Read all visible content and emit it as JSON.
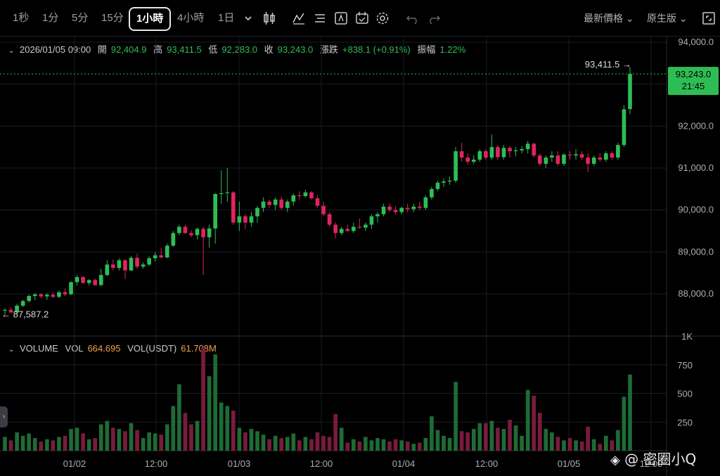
{
  "toolbar": {
    "timeframes": [
      "1秒",
      "1分",
      "5分",
      "15分",
      "1小時",
      "4小時",
      "1日"
    ],
    "active_timeframe": "1小時",
    "price_type": "最新價格",
    "view_mode": "原生版",
    "icons": [
      "chevron-down-icon",
      "candle-type-icon",
      "indicators-icon",
      "drawing-list-icon",
      "template-icon",
      "alert-icon",
      "settings-icon",
      "undo-icon",
      "redo-icon",
      "fullscreen-icon"
    ]
  },
  "ohlc": {
    "datetime": "2026/01/05 09:00",
    "open_label": "開",
    "open": "92,404.9",
    "high_label": "高",
    "high": "93,411.5",
    "low_label": "低",
    "low": "92,283.0",
    "close_label": "收",
    "close": "93,243.0",
    "change_label": "漲跌",
    "change": "+838.1 (+0.91%)",
    "amplitude_label": "振幅",
    "amplitude": "1.22%"
  },
  "price_axis": {
    "ticks": [
      "94,000.0",
      "93,000.0",
      "92,000.0",
      "91,000.0",
      "90,000.0",
      "89,000.0",
      "88,000.0"
    ],
    "current_price": "93,243.0",
    "countdown": "21:45",
    "high_marker": "93,411.5 →",
    "low_marker": "← 87,587.2"
  },
  "volume": {
    "title": "VOLUME",
    "vol_label": "VOL",
    "vol": "664.695",
    "vol_usdt_label": "VOL(USDT)",
    "vol_usdt": "61.708M",
    "ticks": [
      "1K",
      "750",
      "500",
      "250"
    ]
  },
  "time_axis": {
    "labels": [
      "01/02",
      "12:00",
      "01/03",
      "12:00",
      "01/04",
      "12:00",
      "01/05",
      "12:00"
    ]
  },
  "watermark": {
    "text": "@ 密圈小Q"
  },
  "colors": {
    "up": "#2ebd55",
    "down": "#e0245e",
    "background": "#000000",
    "grid": "#1a1d22"
  },
  "chart_data": {
    "type": "candlestick",
    "interval": "1小時",
    "ylim": [
      87200,
      94100
    ],
    "volume_ylim": [
      0,
      1000
    ],
    "candles": [
      {
        "o": 87600,
        "h": 87650,
        "l": 87500,
        "c": 87620,
        "v": 120
      },
      {
        "o": 87620,
        "h": 87680,
        "l": 87540,
        "c": 87560,
        "v": 90
      },
      {
        "o": 87560,
        "h": 87760,
        "l": 87520,
        "c": 87720,
        "v": 160
      },
      {
        "o": 87720,
        "h": 87860,
        "l": 87680,
        "c": 87830,
        "v": 130
      },
      {
        "o": 87830,
        "h": 87990,
        "l": 87790,
        "c": 87950,
        "v": 150
      },
      {
        "o": 87950,
        "h": 88020,
        "l": 87850,
        "c": 87990,
        "v": 110
      },
      {
        "o": 87990,
        "h": 88010,
        "l": 87900,
        "c": 87940,
        "v": 80
      },
      {
        "o": 87940,
        "h": 88020,
        "l": 87860,
        "c": 87980,
        "v": 100
      },
      {
        "o": 87980,
        "h": 88030,
        "l": 87900,
        "c": 87930,
        "v": 90
      },
      {
        "o": 87930,
        "h": 88080,
        "l": 87900,
        "c": 88040,
        "v": 120
      },
      {
        "o": 88040,
        "h": 88130,
        "l": 87950,
        "c": 87990,
        "v": 130
      },
      {
        "o": 87990,
        "h": 88300,
        "l": 87970,
        "c": 88280,
        "v": 190
      },
      {
        "o": 88280,
        "h": 88450,
        "l": 88200,
        "c": 88400,
        "v": 200
      },
      {
        "o": 88400,
        "h": 88430,
        "l": 88240,
        "c": 88260,
        "v": 150
      },
      {
        "o": 88260,
        "h": 88350,
        "l": 88200,
        "c": 88330,
        "v": 100
      },
      {
        "o": 88330,
        "h": 88370,
        "l": 88200,
        "c": 88210,
        "v": 110
      },
      {
        "o": 88210,
        "h": 88600,
        "l": 88190,
        "c": 88450,
        "v": 230
      },
      {
        "o": 88450,
        "h": 88800,
        "l": 88420,
        "c": 88700,
        "v": 260
      },
      {
        "o": 88700,
        "h": 88820,
        "l": 88560,
        "c": 88620,
        "v": 200
      },
      {
        "o": 88620,
        "h": 88850,
        "l": 88560,
        "c": 88800,
        "v": 190
      },
      {
        "o": 88800,
        "h": 88830,
        "l": 88350,
        "c": 88560,
        "v": 170
      },
      {
        "o": 88560,
        "h": 88900,
        "l": 88540,
        "c": 88860,
        "v": 240
      },
      {
        "o": 88860,
        "h": 88960,
        "l": 88600,
        "c": 88650,
        "v": 180
      },
      {
        "o": 88650,
        "h": 88750,
        "l": 88600,
        "c": 88700,
        "v": 110
      },
      {
        "o": 88700,
        "h": 88900,
        "l": 88660,
        "c": 88850,
        "v": 160
      },
      {
        "o": 88850,
        "h": 88990,
        "l": 88780,
        "c": 88920,
        "v": 150
      },
      {
        "o": 88920,
        "h": 89100,
        "l": 88850,
        "c": 88870,
        "v": 140
      },
      {
        "o": 88870,
        "h": 89200,
        "l": 88850,
        "c": 89150,
        "v": 230
      },
      {
        "o": 89150,
        "h": 89500,
        "l": 89120,
        "c": 89450,
        "v": 390
      },
      {
        "o": 89450,
        "h": 89650,
        "l": 89400,
        "c": 89600,
        "v": 580
      },
      {
        "o": 89600,
        "h": 89650,
        "l": 89430,
        "c": 89450,
        "v": 330
      },
      {
        "o": 89450,
        "h": 89520,
        "l": 89350,
        "c": 89400,
        "v": 230
      },
      {
        "o": 89400,
        "h": 89580,
        "l": 89300,
        "c": 89550,
        "v": 260
      },
      {
        "o": 89550,
        "h": 89600,
        "l": 88450,
        "c": 89350,
        "v": 900
      },
      {
        "o": 89350,
        "h": 89650,
        "l": 89100,
        "c": 89560,
        "v": 650
      },
      {
        "o": 89560,
        "h": 90400,
        "l": 89200,
        "c": 90380,
        "v": 840
      },
      {
        "o": 90380,
        "h": 90950,
        "l": 90150,
        "c": 90400,
        "v": 420
      },
      {
        "o": 90400,
        "h": 91000,
        "l": 90200,
        "c": 90420,
        "v": 390
      },
      {
        "o": 90420,
        "h": 90450,
        "l": 89650,
        "c": 89700,
        "v": 350
      },
      {
        "o": 89700,
        "h": 90200,
        "l": 89500,
        "c": 89850,
        "v": 200
      },
      {
        "o": 89850,
        "h": 89900,
        "l": 89550,
        "c": 89700,
        "v": 160
      },
      {
        "o": 89700,
        "h": 89950,
        "l": 89600,
        "c": 89850,
        "v": 190
      },
      {
        "o": 89850,
        "h": 90100,
        "l": 89700,
        "c": 90050,
        "v": 170
      },
      {
        "o": 90050,
        "h": 90300,
        "l": 89950,
        "c": 90200,
        "v": 140
      },
      {
        "o": 90200,
        "h": 90250,
        "l": 90050,
        "c": 90120,
        "v": 100
      },
      {
        "o": 90120,
        "h": 90300,
        "l": 90000,
        "c": 90250,
        "v": 130
      },
      {
        "o": 90250,
        "h": 90320,
        "l": 90000,
        "c": 90050,
        "v": 110
      },
      {
        "o": 90050,
        "h": 90250,
        "l": 89950,
        "c": 90200,
        "v": 120
      },
      {
        "o": 90200,
        "h": 90400,
        "l": 90100,
        "c": 90350,
        "v": 150
      },
      {
        "o": 90350,
        "h": 90450,
        "l": 90250,
        "c": 90330,
        "v": 90
      },
      {
        "o": 90330,
        "h": 90480,
        "l": 90300,
        "c": 90420,
        "v": 120
      },
      {
        "o": 90420,
        "h": 90450,
        "l": 90250,
        "c": 90280,
        "v": 100
      },
      {
        "o": 90280,
        "h": 90350,
        "l": 90050,
        "c": 90100,
        "v": 160
      },
      {
        "o": 90100,
        "h": 90200,
        "l": 89850,
        "c": 89900,
        "v": 130
      },
      {
        "o": 89900,
        "h": 89950,
        "l": 89600,
        "c": 89650,
        "v": 120
      },
      {
        "o": 89650,
        "h": 89700,
        "l": 89320,
        "c": 89450,
        "v": 320
      },
      {
        "o": 89450,
        "h": 89600,
        "l": 89400,
        "c": 89550,
        "v": 200
      },
      {
        "o": 89550,
        "h": 89650,
        "l": 89480,
        "c": 89500,
        "v": 70
      },
      {
        "o": 89500,
        "h": 89700,
        "l": 89450,
        "c": 89600,
        "v": 100
      },
      {
        "o": 89600,
        "h": 89800,
        "l": 89550,
        "c": 89580,
        "v": 80
      },
      {
        "o": 89580,
        "h": 89700,
        "l": 89500,
        "c": 89650,
        "v": 120
      },
      {
        "o": 89650,
        "h": 89900,
        "l": 89550,
        "c": 89850,
        "v": 90
      },
      {
        "o": 89850,
        "h": 89950,
        "l": 89700,
        "c": 89900,
        "v": 110
      },
      {
        "o": 89900,
        "h": 90150,
        "l": 89850,
        "c": 90080,
        "v": 100
      },
      {
        "o": 90080,
        "h": 90150,
        "l": 89950,
        "c": 90000,
        "v": 80
      },
      {
        "o": 90000,
        "h": 90100,
        "l": 89900,
        "c": 89950,
        "v": 100
      },
      {
        "o": 89950,
        "h": 90080,
        "l": 89900,
        "c": 90050,
        "v": 90
      },
      {
        "o": 90050,
        "h": 90150,
        "l": 89950,
        "c": 90020,
        "v": 80
      },
      {
        "o": 90020,
        "h": 90150,
        "l": 89950,
        "c": 90080,
        "v": 60
      },
      {
        "o": 90080,
        "h": 90200,
        "l": 90000,
        "c": 90050,
        "v": 70
      },
      {
        "o": 90050,
        "h": 90350,
        "l": 90000,
        "c": 90300,
        "v": 110
      },
      {
        "o": 90300,
        "h": 90550,
        "l": 90250,
        "c": 90500,
        "v": 300
      },
      {
        "o": 90500,
        "h": 90700,
        "l": 90450,
        "c": 90650,
        "v": 180
      },
      {
        "o": 90650,
        "h": 90750,
        "l": 90550,
        "c": 90680,
        "v": 130
      },
      {
        "o": 90680,
        "h": 90800,
        "l": 90600,
        "c": 90700,
        "v": 110
      },
      {
        "o": 90700,
        "h": 91500,
        "l": 90650,
        "c": 91400,
        "v": 600
      },
      {
        "o": 91400,
        "h": 91600,
        "l": 91150,
        "c": 91250,
        "v": 170
      },
      {
        "o": 91250,
        "h": 91350,
        "l": 91080,
        "c": 91150,
        "v": 160
      },
      {
        "o": 91150,
        "h": 91300,
        "l": 91100,
        "c": 91200,
        "v": 190
      },
      {
        "o": 91200,
        "h": 91450,
        "l": 91150,
        "c": 91400,
        "v": 240
      },
      {
        "o": 91400,
        "h": 91450,
        "l": 91200,
        "c": 91250,
        "v": 240
      },
      {
        "o": 91250,
        "h": 91800,
        "l": 91200,
        "c": 91500,
        "v": 260
      },
      {
        "o": 91500,
        "h": 91550,
        "l": 91200,
        "c": 91260,
        "v": 200
      },
      {
        "o": 91260,
        "h": 91550,
        "l": 91200,
        "c": 91480,
        "v": 190
      },
      {
        "o": 91480,
        "h": 91530,
        "l": 91250,
        "c": 91400,
        "v": 270
      },
      {
        "o": 91400,
        "h": 91500,
        "l": 91280,
        "c": 91420,
        "v": 220
      },
      {
        "o": 91420,
        "h": 91520,
        "l": 91350,
        "c": 91450,
        "v": 130
      },
      {
        "o": 91450,
        "h": 91650,
        "l": 91350,
        "c": 91580,
        "v": 530
      },
      {
        "o": 91580,
        "h": 91600,
        "l": 91250,
        "c": 91300,
        "v": 480
      },
      {
        "o": 91300,
        "h": 91350,
        "l": 91050,
        "c": 91100,
        "v": 330
      },
      {
        "o": 91100,
        "h": 91300,
        "l": 91000,
        "c": 91250,
        "v": 190
      },
      {
        "o": 91250,
        "h": 91400,
        "l": 91150,
        "c": 91300,
        "v": 160
      },
      {
        "o": 91300,
        "h": 91400,
        "l": 91050,
        "c": 91100,
        "v": 120
      },
      {
        "o": 91100,
        "h": 91350,
        "l": 91050,
        "c": 91320,
        "v": 90
      },
      {
        "o": 91320,
        "h": 91400,
        "l": 91200,
        "c": 91300,
        "v": 110
      },
      {
        "o": 91300,
        "h": 91450,
        "l": 91200,
        "c": 91330,
        "v": 90
      },
      {
        "o": 91330,
        "h": 91400,
        "l": 91200,
        "c": 91250,
        "v": 80
      },
      {
        "o": 91250,
        "h": 91350,
        "l": 90900,
        "c": 91100,
        "v": 210
      },
      {
        "o": 91100,
        "h": 91300,
        "l": 91050,
        "c": 91250,
        "v": 100
      },
      {
        "o": 91250,
        "h": 91350,
        "l": 91150,
        "c": 91200,
        "v": 60
      },
      {
        "o": 91200,
        "h": 91400,
        "l": 91150,
        "c": 91350,
        "v": 130
      },
      {
        "o": 91350,
        "h": 91400,
        "l": 91200,
        "c": 91250,
        "v": 90
      },
      {
        "o": 91250,
        "h": 91600,
        "l": 91200,
        "c": 91550,
        "v": 180
      },
      {
        "o": 91550,
        "h": 92500,
        "l": 91500,
        "c": 92400,
        "v": 470
      },
      {
        "o": 92404.9,
        "h": 93411.5,
        "l": 92283,
        "c": 93243,
        "v": 664.695
      }
    ]
  }
}
